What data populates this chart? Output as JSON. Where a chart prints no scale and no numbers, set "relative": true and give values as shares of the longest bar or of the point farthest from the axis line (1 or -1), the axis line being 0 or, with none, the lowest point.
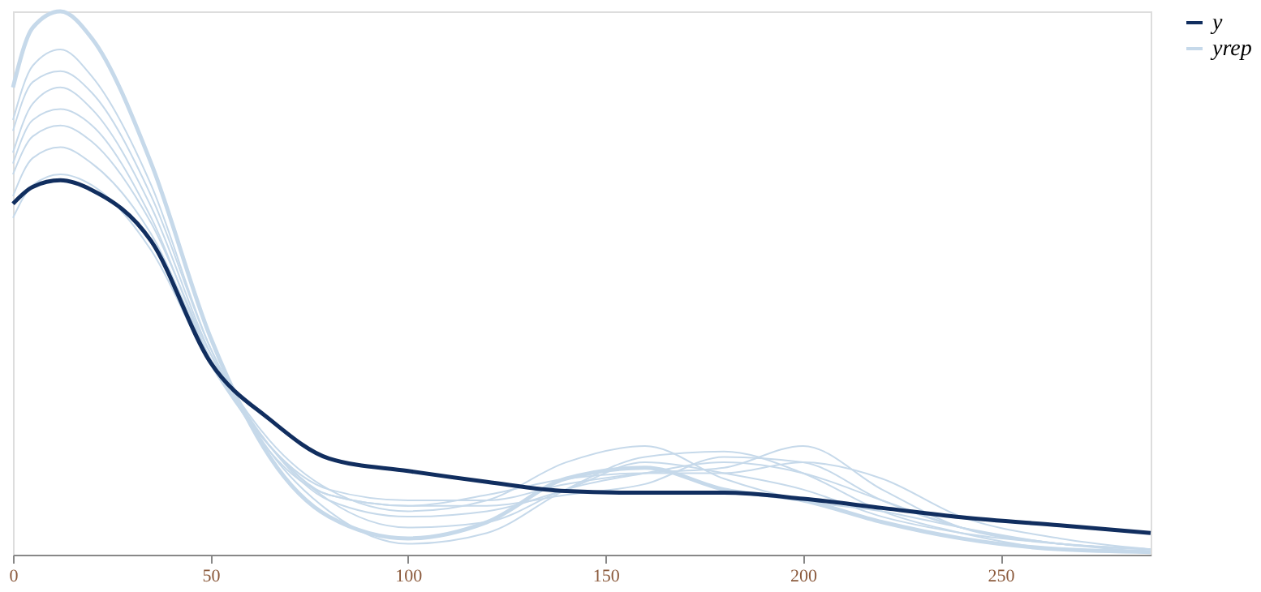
{
  "chart_data": {
    "type": "line",
    "relative": true,
    "x": [
      0,
      5,
      12,
      20,
      35,
      50,
      65,
      80,
      100,
      120,
      140,
      160,
      180,
      200,
      220,
      240,
      265,
      288
    ],
    "xlim": [
      0,
      288
    ],
    "xticks": [
      0,
      50,
      100,
      150,
      200,
      250
    ],
    "grid": false,
    "legend": "right",
    "line_style": "solid",
    "marker": "none",
    "series": [
      {
        "name": "yrep",
        "color": "#c6d9ea",
        "values": [
          0.86,
          0.97,
          1.0,
          0.95,
          0.72,
          0.4,
          0.18,
          0.07,
          0.03,
          0.06,
          0.14,
          0.16,
          0.12,
          0.1,
          0.06,
          0.03,
          0.01,
          0.005
        ]
      },
      {
        "color": "#c6d9ea",
        "values": [
          0.8,
          0.9,
          0.93,
          0.88,
          0.68,
          0.38,
          0.2,
          0.1,
          0.07,
          0.08,
          0.12,
          0.17,
          0.15,
          0.12,
          0.07,
          0.04,
          0.02,
          0.01
        ]
      },
      {
        "color": "#c6d9ea",
        "values": [
          0.74,
          0.83,
          0.86,
          0.82,
          0.64,
          0.37,
          0.19,
          0.11,
          0.09,
          0.09,
          0.11,
          0.13,
          0.18,
          0.17,
          0.1,
          0.05,
          0.02,
          0.01
        ]
      },
      {
        "color": "#c6d9ea",
        "values": [
          0.72,
          0.8,
          0.82,
          0.79,
          0.62,
          0.36,
          0.2,
          0.12,
          0.1,
          0.1,
          0.13,
          0.15,
          0.16,
          0.2,
          0.12,
          0.05,
          0.02,
          0.01
        ]
      },
      {
        "color": "#c6d9ea",
        "values": [
          0.7,
          0.77,
          0.79,
          0.76,
          0.61,
          0.37,
          0.21,
          0.12,
          0.08,
          0.1,
          0.17,
          0.2,
          0.14,
          0.1,
          0.08,
          0.05,
          0.02,
          0.01
        ]
      },
      {
        "color": "#c6d9ea",
        "values": [
          0.66,
          0.73,
          0.75,
          0.72,
          0.59,
          0.36,
          0.2,
          0.1,
          0.05,
          0.06,
          0.12,
          0.15,
          0.17,
          0.15,
          0.1,
          0.05,
          0.02,
          0.005
        ]
      },
      {
        "color": "#c6d9ea",
        "values": [
          0.62,
          0.68,
          0.7,
          0.68,
          0.56,
          0.35,
          0.2,
          0.11,
          0.09,
          0.11,
          0.14,
          0.15,
          0.15,
          0.17,
          0.14,
          0.07,
          0.03,
          0.01
        ]
      },
      {
        "color": "#c6d9ea",
        "values": [
          0.78,
          0.87,
          0.89,
          0.85,
          0.66,
          0.38,
          0.19,
          0.08,
          0.02,
          0.04,
          0.12,
          0.18,
          0.19,
          0.15,
          0.08,
          0.04,
          0.01,
          0.005
        ]
      },
      {
        "name": "y",
        "color": "#112e5f",
        "values": [
          0.646,
          0.677,
          0.689,
          0.671,
          0.577,
          0.354,
          0.249,
          0.177,
          0.154,
          0.134,
          0.117,
          0.114,
          0.114,
          0.103,
          0.086,
          0.069,
          0.054,
          0.04
        ]
      }
    ]
  }
}
